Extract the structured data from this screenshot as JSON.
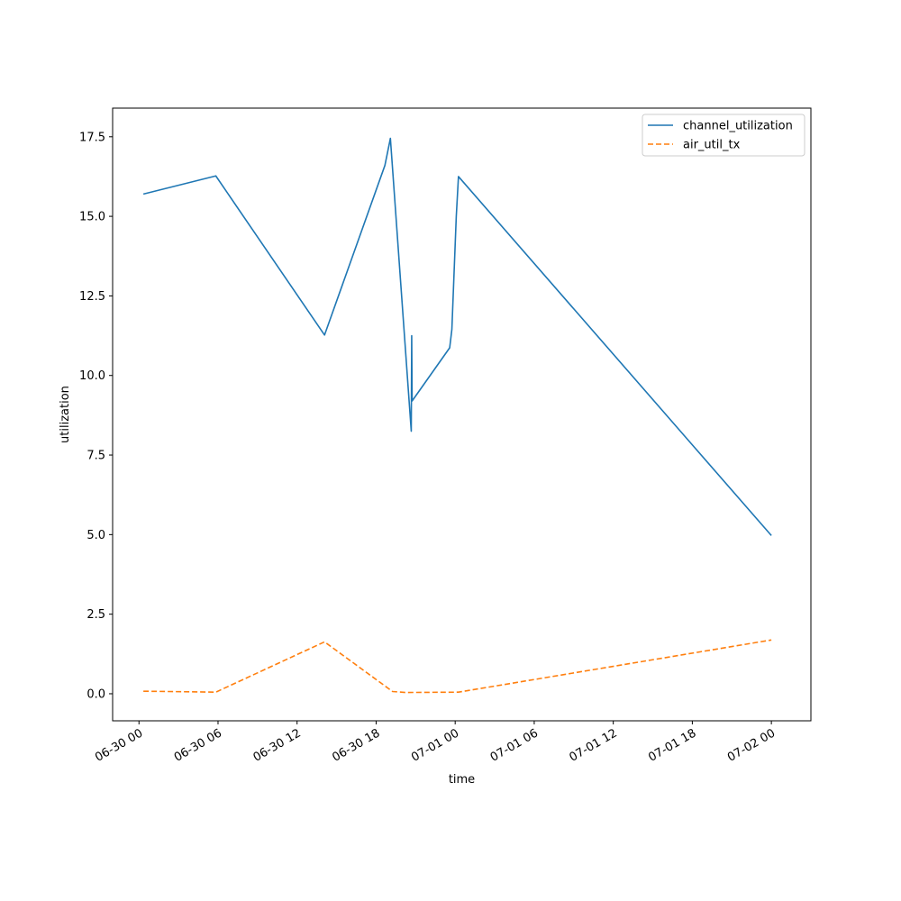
{
  "chart_data": {
    "type": "line",
    "title": "",
    "xlabel": "time",
    "ylabel": "utilization",
    "x_type": "datetime",
    "xlim": [
      "2021-06-29T22:00:00",
      "2021-07-02T03:00:00"
    ],
    "ylim": [
      -0.85,
      18.4
    ],
    "x_ticks": [
      {
        "value": "2021-06-30T00:00:00",
        "label": "06-30 00"
      },
      {
        "value": "2021-06-30T06:00:00",
        "label": "06-30 06"
      },
      {
        "value": "2021-06-30T12:00:00",
        "label": "06-30 12"
      },
      {
        "value": "2021-06-30T18:00:00",
        "label": "06-30 18"
      },
      {
        "value": "2021-07-01T00:00:00",
        "label": "07-01 00"
      },
      {
        "value": "2021-07-01T06:00:00",
        "label": "07-01 06"
      },
      {
        "value": "2021-07-01T12:00:00",
        "label": "07-01 12"
      },
      {
        "value": "2021-07-01T18:00:00",
        "label": "07-01 18"
      },
      {
        "value": "2021-07-02T00:00:00",
        "label": "07-02 00"
      }
    ],
    "y_ticks": [
      {
        "value": 0.0,
        "label": "0.0"
      },
      {
        "value": 2.5,
        "label": "2.5"
      },
      {
        "value": 5.0,
        "label": "5.0"
      },
      {
        "value": 7.5,
        "label": "7.5"
      },
      {
        "value": 10.0,
        "label": "10.0"
      },
      {
        "value": 12.5,
        "label": "12.5"
      },
      {
        "value": 15.0,
        "label": "15.0"
      },
      {
        "value": 17.5,
        "label": "17.5"
      }
    ],
    "grid": false,
    "legend_position": "top-right",
    "series": [
      {
        "name": "channel_utilization",
        "color": "#1f77b4",
        "style": "solid",
        "points": [
          {
            "x": "2021-06-30T00:20:00",
            "y": 15.7
          },
          {
            "x": "2021-06-30T05:50:00",
            "y": 16.27
          },
          {
            "x": "2021-06-30T14:05:00",
            "y": 11.27
          },
          {
            "x": "2021-06-30T18:40:00",
            "y": 16.6
          },
          {
            "x": "2021-06-30T19:05:00",
            "y": 17.45
          },
          {
            "x": "2021-06-30T20:40:00",
            "y": 8.25
          },
          {
            "x": "2021-06-30T20:42:00",
            "y": 11.25
          },
          {
            "x": "2021-06-30T20:44:00",
            "y": 9.2
          },
          {
            "x": "2021-06-30T23:35:00",
            "y": 10.87
          },
          {
            "x": "2021-06-30T23:45:00",
            "y": 11.45
          },
          {
            "x": "2021-07-01T00:05:00",
            "y": 15.0
          },
          {
            "x": "2021-07-01T00:15:00",
            "y": 16.25
          },
          {
            "x": "2021-07-02T00:00:00",
            "y": 4.97
          }
        ]
      },
      {
        "name": "air_util_tx",
        "color": "#ff7f0e",
        "style": "dashed",
        "points": [
          {
            "x": "2021-06-30T00:20:00",
            "y": 0.08
          },
          {
            "x": "2021-06-30T05:50:00",
            "y": 0.05
          },
          {
            "x": "2021-06-30T14:05:00",
            "y": 1.63
          },
          {
            "x": "2021-06-30T19:15:00",
            "y": 0.07
          },
          {
            "x": "2021-06-30T20:15:00",
            "y": 0.04
          },
          {
            "x": "2021-07-01T00:15:00",
            "y": 0.05
          },
          {
            "x": "2021-07-02T00:00:00",
            "y": 1.69
          }
        ]
      }
    ]
  }
}
